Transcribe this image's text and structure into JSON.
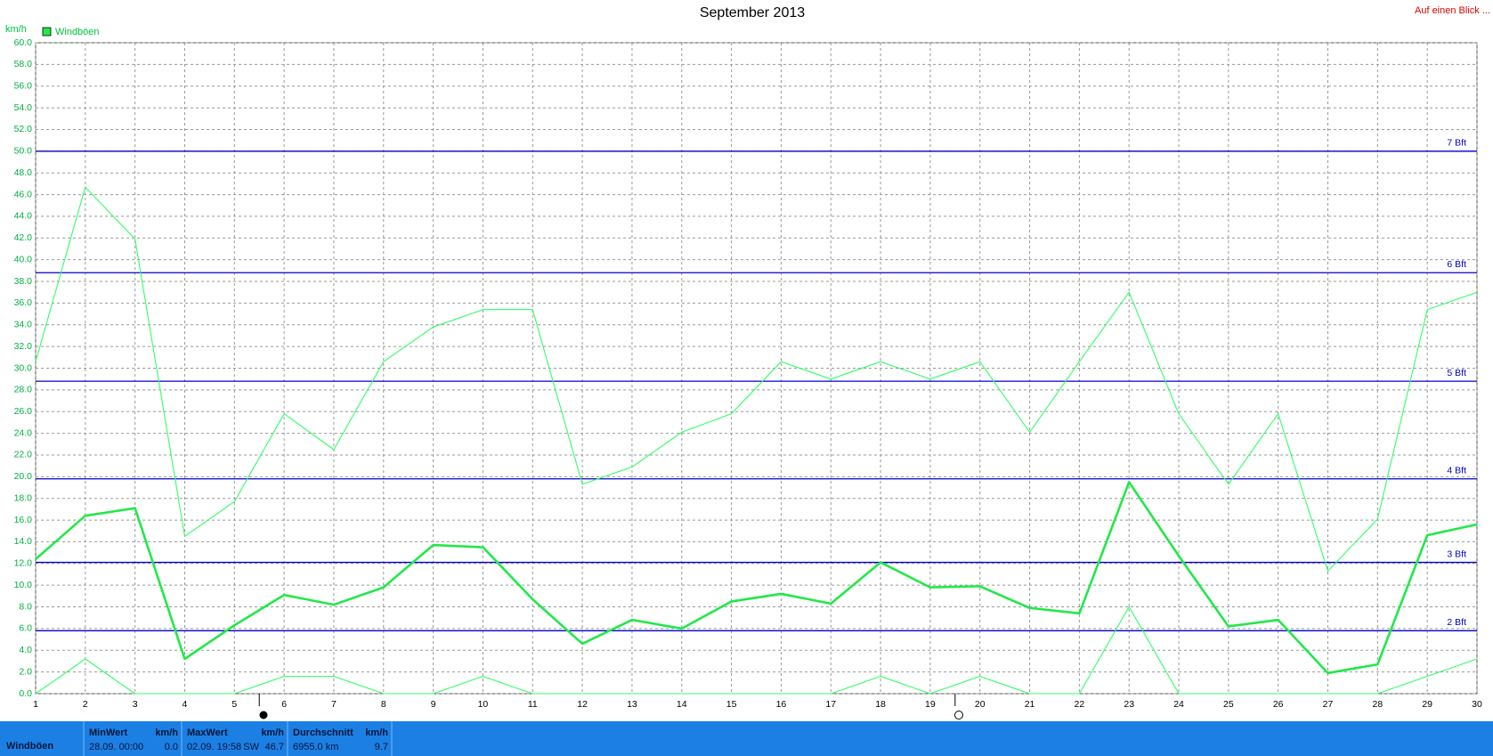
{
  "chart_data": {
    "type": "line",
    "title": "September 2013",
    "corner_link": "Auf einen Blick ...",
    "y_label": "km/h",
    "x": [
      1,
      2,
      3,
      4,
      5,
      6,
      7,
      8,
      9,
      10,
      11,
      12,
      13,
      14,
      15,
      16,
      17,
      18,
      19,
      20,
      21,
      22,
      23,
      24,
      25,
      26,
      27,
      28,
      29,
      30
    ],
    "xlim": [
      1,
      30
    ],
    "xticks": [
      1,
      2,
      3,
      4,
      5,
      6,
      7,
      8,
      9,
      10,
      11,
      12,
      13,
      14,
      15,
      16,
      17,
      18,
      19,
      20,
      21,
      22,
      23,
      24,
      25,
      26,
      27,
      28,
      29,
      30
    ],
    "ylim": [
      0,
      60
    ],
    "yticks": [
      {
        "value": 0,
        "label": "0.0"
      },
      {
        "value": 2,
        "label": "2.0"
      },
      {
        "value": 4,
        "label": "4.0"
      },
      {
        "value": 6,
        "label": "6.0"
      },
      {
        "value": 8,
        "label": "8.0"
      },
      {
        "value": 10,
        "label": "10.0"
      },
      {
        "value": 12,
        "label": "12.0"
      },
      {
        "value": 14,
        "label": "14.0"
      },
      {
        "value": 16,
        "label": "16.0"
      },
      {
        "value": 18,
        "label": "18.0"
      },
      {
        "value": 20,
        "label": "20.0"
      },
      {
        "value": 22,
        "label": "22.0"
      },
      {
        "value": 24,
        "label": "24.0"
      },
      {
        "value": 26,
        "label": "26.0"
      },
      {
        "value": 28,
        "label": "28.0"
      },
      {
        "value": 30,
        "label": "30.0"
      },
      {
        "value": 32,
        "label": "32.0"
      },
      {
        "value": 34,
        "label": "34.0"
      },
      {
        "value": 36,
        "label": "36.0"
      },
      {
        "value": 38,
        "label": "38.0"
      },
      {
        "value": 40,
        "label": "40.0"
      },
      {
        "value": 42,
        "label": "42.0"
      },
      {
        "value": 44,
        "label": "44.0"
      },
      {
        "value": 46,
        "label": "46.0"
      },
      {
        "value": 48,
        "label": "48.0"
      },
      {
        "value": 50,
        "label": "50.0"
      },
      {
        "value": 52,
        "label": "52.0"
      },
      {
        "value": 54,
        "label": "54.0"
      },
      {
        "value": 56,
        "label": "56.0"
      },
      {
        "value": 58,
        "label": "58.0"
      },
      {
        "value": 60,
        "label": "60.0"
      }
    ],
    "grid": true,
    "legend": "top-left",
    "series": [
      {
        "name": "Windböen",
        "color": "#22e84a",
        "width": 2.6,
        "values": [
          12.4,
          16.4,
          17.1,
          3.2,
          6.3,
          9.1,
          8.2,
          9.8,
          13.7,
          13.5,
          8.7,
          4.6,
          6.8,
          6.0,
          8.5,
          9.2,
          8.3,
          12.1,
          9.8,
          9.9,
          7.9,
          7.4,
          19.5,
          12.7,
          6.2,
          6.8,
          1.9,
          2.7,
          14.6,
          15.6
        ]
      },
      {
        "color": "#33ff66",
        "width": 1.1,
        "values": [
          30.6,
          46.7,
          41.9,
          14.5,
          17.7,
          25.8,
          22.5,
          30.6,
          33.8,
          35.4,
          35.4,
          19.3,
          20.9,
          24.1,
          25.8,
          30.6,
          29.0,
          30.6,
          29.0,
          30.6,
          24.1,
          30.6,
          37.0,
          25.8,
          19.3,
          25.8,
          11.3,
          16.1,
          35.4,
          37.0
        ]
      },
      {
        "color": "#33ff66",
        "width": 1.1,
        "values": [
          0,
          3.2,
          0,
          0,
          0,
          1.6,
          1.6,
          0,
          0,
          1.6,
          0,
          0,
          0,
          0,
          0,
          0,
          0,
          1.6,
          0,
          1.6,
          0,
          0,
          8.0,
          0,
          0,
          0,
          0,
          0,
          1.6,
          3.2
        ]
      }
    ],
    "reference_lines": [
      {
        "value": 50,
        "label": "7 Bft"
      },
      {
        "value": 38.8,
        "label": "6 Bft"
      },
      {
        "value": 28.8,
        "label": "5 Bft"
      },
      {
        "value": 19.8,
        "label": "4 Bft"
      },
      {
        "value": 12.1,
        "label": "3 Bft"
      },
      {
        "value": 5.8,
        "label": "2 Bft"
      }
    ],
    "reference_color": "#0000c8"
  },
  "footer": {
    "label": "Windböen",
    "cells": [
      {
        "title": "MinWert",
        "unit": "km/h",
        "detail": "28.09. 00:00",
        "value": "0.0"
      },
      {
        "title": "MaxWert",
        "unit": "km/h",
        "detail": "02.09. 19:58",
        "direction": "SW",
        "value": "46.7"
      },
      {
        "title": "Durchschnitt",
        "unit": "km/h",
        "detail": "6955.0 km",
        "value": "9.7"
      }
    ]
  }
}
